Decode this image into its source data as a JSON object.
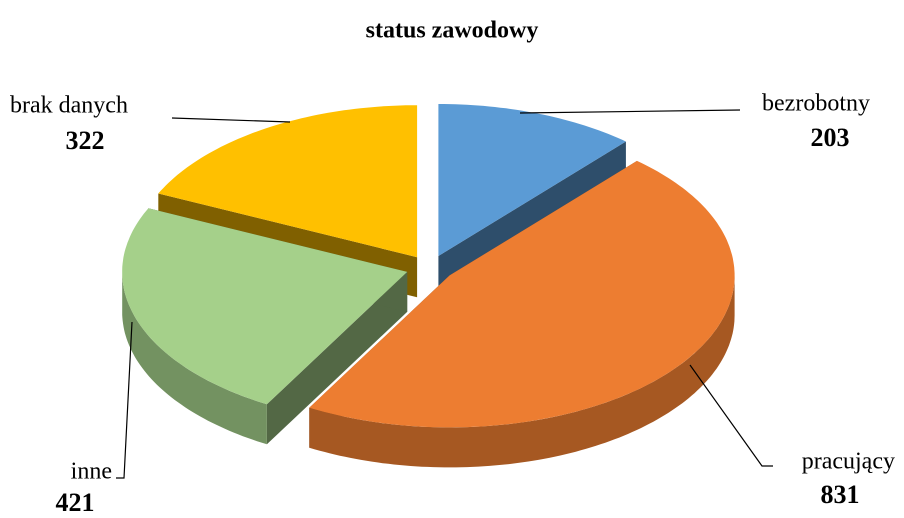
{
  "chart_data": {
    "type": "pie3d",
    "title": "status zawodowy",
    "categories": [
      "bezrobotny",
      "pracujący",
      "inne",
      "brak danych"
    ],
    "values": [
      203,
      831,
      421,
      322
    ],
    "colors": [
      "#5b9bd5",
      "#ed7d31",
      "#a5d08a",
      "#ffc000"
    ]
  }
}
